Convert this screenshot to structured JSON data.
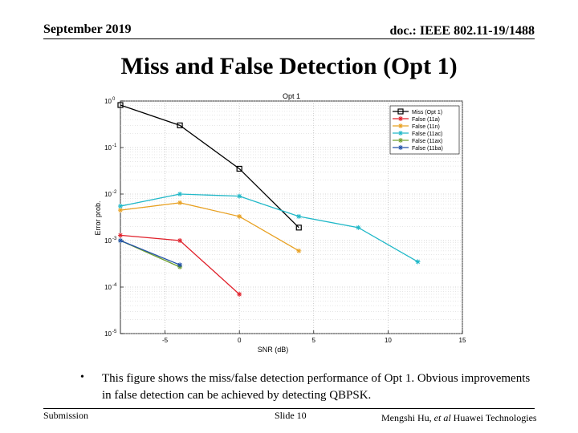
{
  "header": {
    "date": "September 2019",
    "doc": "doc.: IEEE 802.11-19/1488"
  },
  "slide": {
    "title": "Miss and False Detection (Opt 1)",
    "bullet": "•",
    "text": "This figure shows the miss/false detection performance of Opt 1. Obvious improvements in false detection can be achieved by detecting QBPSK."
  },
  "footer": {
    "left": "Submission",
    "center": "Slide 10",
    "author_pre": "Mengshi Hu, ",
    "author_etal": "et al",
    "author_post": " Huawei Technologies"
  },
  "chart_data": {
    "type": "line",
    "title": "Opt 1",
    "xlabel": "SNR (dB)",
    "ylabel": "Error prob.",
    "xlim": [
      -8,
      15
    ],
    "ylim_log10": [
      -5,
      0
    ],
    "yscale": "log",
    "grid": true,
    "legend_position": "top-right",
    "xticks": [
      -5,
      0,
      5,
      10,
      15
    ],
    "yticks": [
      {
        "exp": 0,
        "label": "10",
        "sup": "0"
      },
      {
        "exp": -1,
        "label": "10",
        "sup": "-1"
      },
      {
        "exp": -2,
        "label": "10",
        "sup": "-2"
      },
      {
        "exp": -3,
        "label": "10",
        "sup": "-3"
      },
      {
        "exp": -4,
        "label": "10",
        "sup": "-4"
      },
      {
        "exp": -5,
        "label": "10",
        "sup": "-5"
      }
    ],
    "series": [
      {
        "name": "Miss (Opt 1)",
        "color": "#000000",
        "marker": "square",
        "x": [
          -8,
          -4,
          0,
          4
        ],
        "y": [
          0.82,
          0.3,
          0.035,
          0.0019
        ]
      },
      {
        "name": "False (11a)",
        "color": "#e0202a",
        "marker": "star",
        "x": [
          -8,
          -4,
          0
        ],
        "y": [
          0.0013,
          0.001,
          7e-05
        ]
      },
      {
        "name": "False (11n)",
        "color": "#e8a020",
        "marker": "star",
        "x": [
          -8,
          -4,
          0,
          4
        ],
        "y": [
          0.0045,
          0.0065,
          0.0033,
          0.0006
        ]
      },
      {
        "name": "False (11ac)",
        "color": "#20b8c8",
        "marker": "star",
        "x": [
          -8,
          -4,
          0,
          4,
          8,
          12
        ],
        "y": [
          0.0055,
          0.01,
          0.009,
          0.0033,
          0.0019,
          0.00035
        ]
      },
      {
        "name": "False (11ax)",
        "color": "#70a030",
        "marker": "star",
        "x": [
          -8,
          -4
        ],
        "y": [
          0.001,
          0.00027
        ]
      },
      {
        "name": "False (11ba)",
        "color": "#2050a8",
        "marker": "star",
        "x": [
          -8,
          -4
        ],
        "y": [
          0.001,
          0.0003
        ]
      }
    ]
  }
}
